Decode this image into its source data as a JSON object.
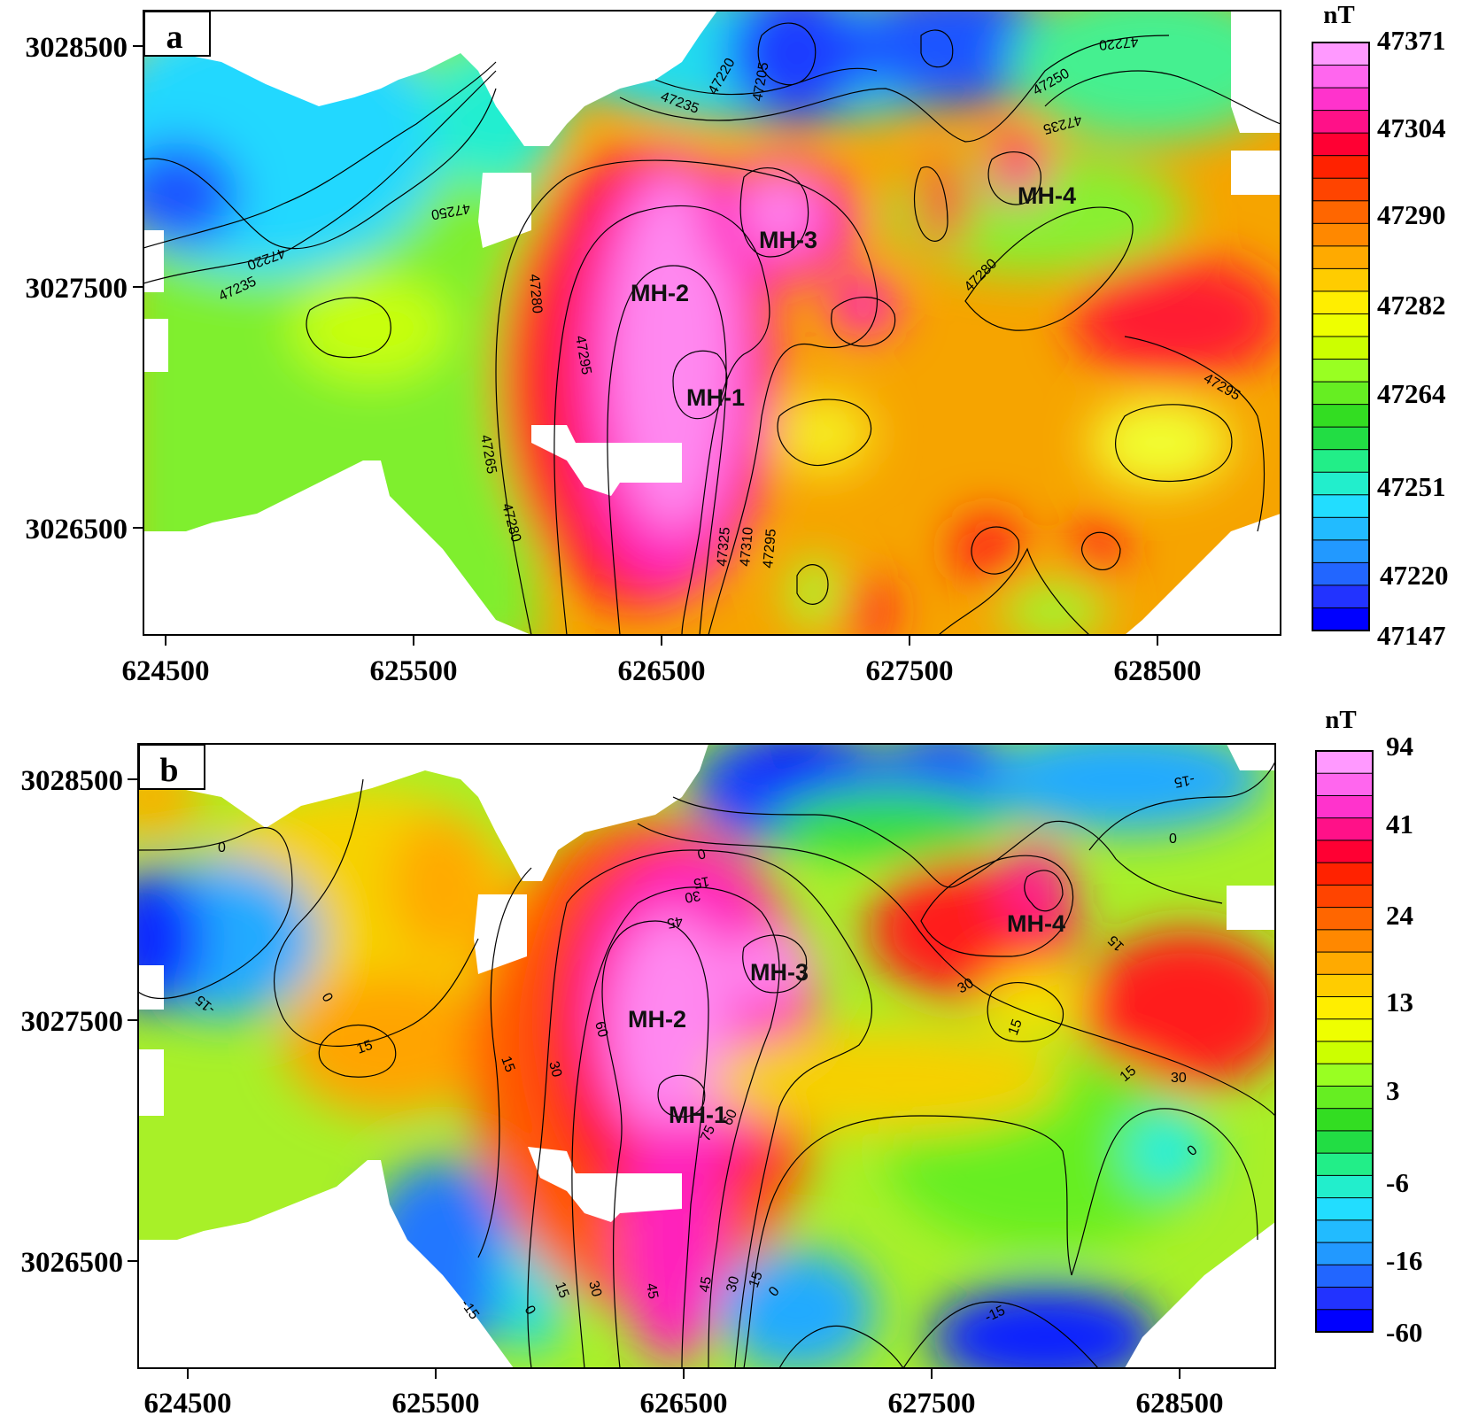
{
  "panels": [
    {
      "tag": "a",
      "unit": "nT",
      "x_ticks": [
        "624500",
        "625500",
        "626500",
        "627500",
        "628500"
      ],
      "y_ticks": [
        "3028500",
        "3027500",
        "3026500"
      ],
      "colorbar_ticks": [
        "47371",
        "47304",
        "47290",
        "47282",
        "47264",
        "47251",
        "47220",
        "47147"
      ],
      "anomalies": [
        "MH-1",
        "MH-2",
        "MH-3",
        "MH-4"
      ],
      "contour_labels": [
        "47205",
        "47220",
        "47235",
        "47220",
        "47250",
        "47235",
        "47250",
        "47220",
        "47235",
        "47280",
        "47280",
        "47295",
        "47265",
        "47280",
        "47325",
        "47310",
        "47295",
        "47295"
      ]
    },
    {
      "tag": "b",
      "unit": "nT",
      "x_ticks": [
        "624500",
        "625500",
        "626500",
        "627500",
        "628500"
      ],
      "y_ticks": [
        "3028500",
        "3027500",
        "3026500"
      ],
      "colorbar_ticks": [
        "94",
        "41",
        "24",
        "13",
        "3",
        "-6",
        "-16",
        "-60"
      ],
      "anomalies": [
        "MH-1",
        "MH-2",
        "MH-3",
        "MH-4"
      ],
      "contour_labels": [
        "-15",
        "0",
        "0",
        "0",
        "15",
        "30",
        "45",
        "15",
        "-15",
        "0",
        "15",
        "15",
        "30",
        "60",
        "75",
        "60",
        "15",
        "30",
        "15",
        "30",
        "0",
        "-15",
        "0",
        "15",
        "30",
        "45",
        "45",
        "30",
        "15",
        "0",
        "-15"
      ]
    }
  ],
  "colors": {
    "colorbar_a": [
      "#ff99ff",
      "#ff66ee",
      "#ff33cc",
      "#ff1188",
      "#ff0033",
      "#ff2200",
      "#ff4400",
      "#ff6600",
      "#ff8800",
      "#ffaa00",
      "#ffcc00",
      "#ffee00",
      "#eeff00",
      "#ccff00",
      "#99ff22",
      "#66ee22",
      "#33dd22",
      "#22dd44",
      "#22ee88",
      "#22eecc",
      "#22ddff",
      "#22bbff",
      "#2299ff",
      "#2266ff",
      "#2233ff",
      "#0000ff"
    ],
    "colorbar_b": [
      "#ff99ff",
      "#ff66ee",
      "#ff33cc",
      "#ff1188",
      "#ff0033",
      "#ff2200",
      "#ff4400",
      "#ff6600",
      "#ff8800",
      "#ffaa00",
      "#ffcc00",
      "#ffee00",
      "#eeff00",
      "#ccff00",
      "#99ff22",
      "#66ee22",
      "#33dd22",
      "#22dd44",
      "#22ee88",
      "#22eecc",
      "#22ddff",
      "#22bbff",
      "#2299ff",
      "#2266ff",
      "#2233ff",
      "#0000ff"
    ]
  }
}
